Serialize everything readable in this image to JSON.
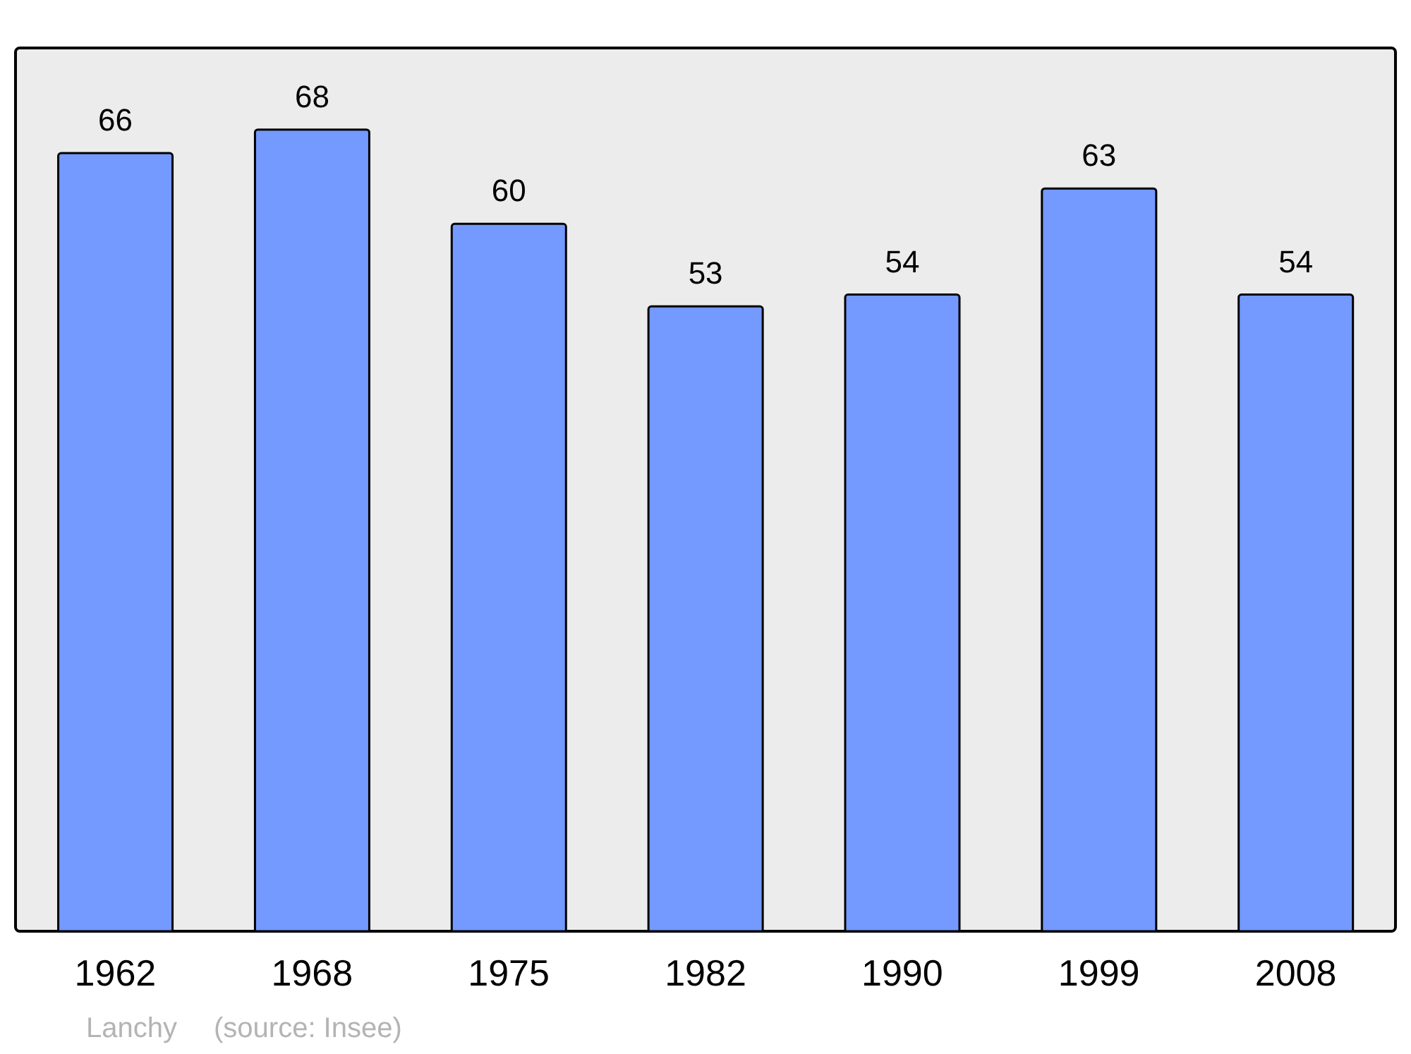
{
  "chart_data": {
    "type": "bar",
    "categories": [
      "1962",
      "1968",
      "1975",
      "1982",
      "1990",
      "1999",
      "2008"
    ],
    "values": [
      66,
      68,
      60,
      53,
      54,
      63,
      54
    ],
    "color": "#7499ff",
    "data_labels": true,
    "annotations": [
      "Lanchy",
      "(source: Insee)"
    ]
  }
}
